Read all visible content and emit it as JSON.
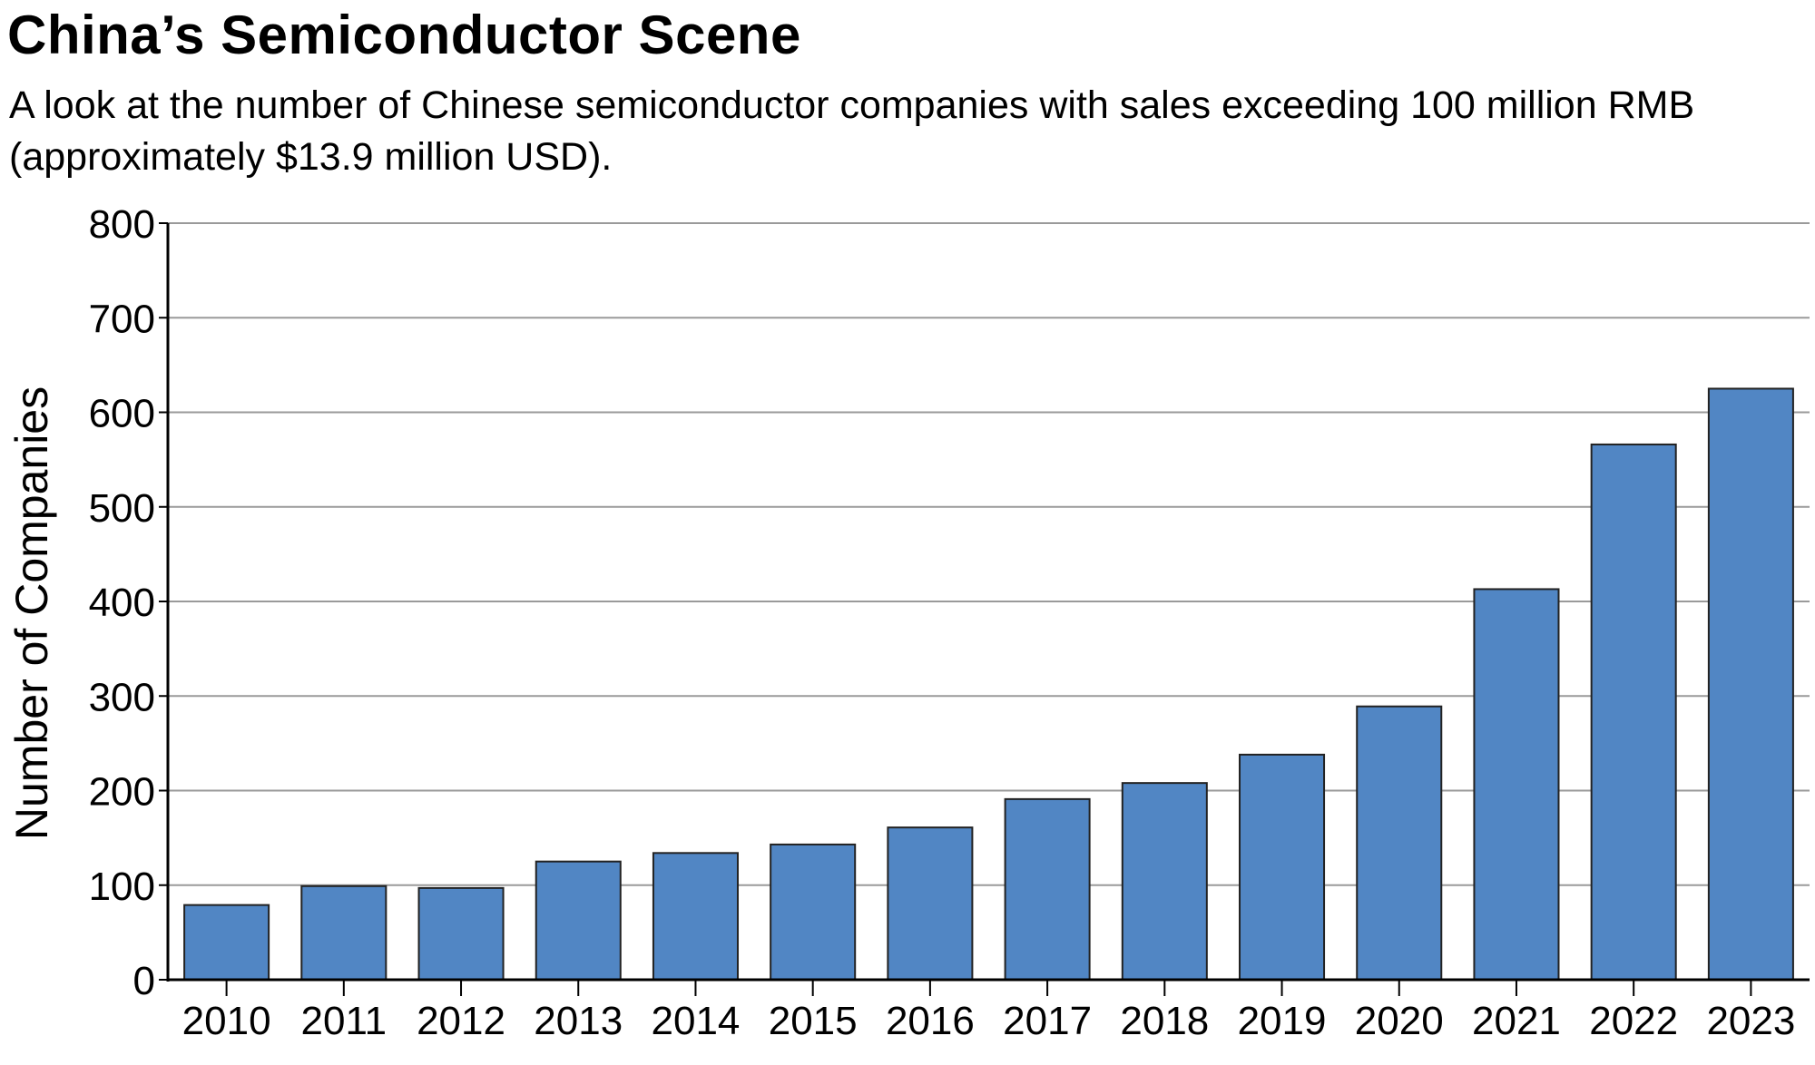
{
  "chart_data": {
    "type": "bar",
    "title": "China’s Semiconductor Scene",
    "subtitle": "A look at the number of Chinese semiconductor companies with sales exceeding 100 million RMB (approximately $13.9 million USD).",
    "xlabel": "",
    "ylabel": "Number of Companies",
    "ylim": [
      0,
      800
    ],
    "yticks": [
      0,
      100,
      200,
      300,
      400,
      500,
      600,
      700,
      800
    ],
    "grid": true,
    "bar_color": "#5186c4",
    "categories": [
      "2010",
      "2011",
      "2012",
      "2013",
      "2014",
      "2015",
      "2016",
      "2017",
      "2018",
      "2019",
      "2020",
      "2021",
      "2022",
      "2023"
    ],
    "values": [
      79,
      99,
      97,
      125,
      134,
      143,
      161,
      191,
      208,
      238,
      289,
      413,
      566,
      625
    ]
  }
}
